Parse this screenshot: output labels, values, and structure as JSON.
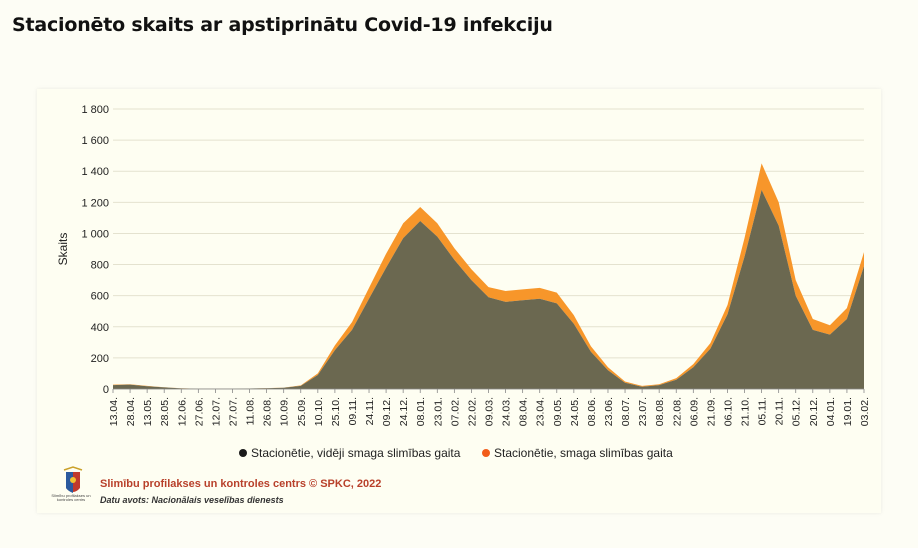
{
  "title": "Stacionēto skaits ar apstiprinātu Covid-19 infekciju",
  "footer": {
    "publisher": "Slimību profilakses un kontroles centrs © SPKC, 2022",
    "source": "Datu avots: Nacionālais veselības dienests",
    "logo_caption": "Slimību profilakses un kontroles centrs"
  },
  "colors": {
    "moderate": "#6b6850",
    "severe": "#f7962a",
    "background": "#fefef2"
  },
  "chart_data": {
    "type": "area",
    "stacked": true,
    "ylabel": "Skaits",
    "xlabel": "",
    "ylim": [
      0,
      1800
    ],
    "yticks": [
      "0",
      "200",
      "400",
      "600",
      "800",
      "1 000",
      "1 200",
      "1 400",
      "1 600",
      "1 800"
    ],
    "grid": "horizontal",
    "legend_position": "bottom",
    "x_tick_labels": [
      "13.04.",
      "28.04.",
      "13.05.",
      "28.05.",
      "12.06.",
      "27.06.",
      "12.07.",
      "27.07.",
      "11.08.",
      "26.08.",
      "10.09.",
      "25.09.",
      "10.10.",
      "25.10.",
      "09.11.",
      "24.11.",
      "09.12.",
      "24.12.",
      "08.01.",
      "23.01.",
      "07.02.",
      "22.02.",
      "09.03.",
      "24.03.",
      "08.04.",
      "23.04.",
      "09.05.",
      "24.05.",
      "08.06.",
      "23.06.",
      "08.07.",
      "23.07.",
      "08.08.",
      "22.08.",
      "06.09.",
      "21.09.",
      "06.10.",
      "21.10.",
      "05.11.",
      "20.11.",
      "05.12.",
      "20.12.",
      "04.01.",
      "19.01.",
      "03.02."
    ],
    "x": [
      "13.04.",
      "28.04.",
      "13.05.",
      "28.05.",
      "12.06.",
      "27.06.",
      "12.07.",
      "27.07.",
      "11.08.",
      "26.08.",
      "10.09.",
      "25.09.",
      "10.10.",
      "25.10.",
      "09.11.",
      "24.11.",
      "09.12.",
      "24.12.",
      "08.01.",
      "23.01.",
      "07.02.",
      "22.02.",
      "09.03.",
      "24.03.",
      "08.04.",
      "23.04.",
      "09.05.",
      "24.05.",
      "08.06.",
      "23.06.",
      "08.07.",
      "23.07.",
      "08.08.",
      "22.08.",
      "06.09.",
      "21.09.",
      "06.10.",
      "21.10.",
      "05.11.",
      "20.11.",
      "05.12.",
      "20.12.",
      "04.01.",
      "19.01.",
      "03.02."
    ],
    "series": [
      {
        "name": "Stacionētie, vidēji smaga slimības gaita",
        "color": "#6b6850",
        "values": [
          25,
          28,
          18,
          10,
          4,
          2,
          2,
          2,
          3,
          5,
          8,
          20,
          90,
          250,
          380,
          580,
          780,
          970,
          1080,
          980,
          830,
          700,
          590,
          560,
          570,
          580,
          550,
          420,
          240,
          120,
          40,
          15,
          25,
          60,
          140,
          260,
          480,
          850,
          1280,
          1050,
          600,
          380,
          350,
          450,
          790
        ]
      },
      {
        "name": "Stacionētie, smaga slimības gaita",
        "color": "#f7962a",
        "values": [
          3,
          3,
          2,
          1,
          1,
          0,
          0,
          0,
          0,
          1,
          1,
          3,
          10,
          30,
          50,
          70,
          90,
          95,
          90,
          85,
          75,
          70,
          65,
          70,
          70,
          70,
          70,
          55,
          35,
          20,
          8,
          5,
          5,
          10,
          20,
          35,
          60,
          120,
          170,
          150,
          100,
          70,
          60,
          70,
          90
        ]
      }
    ]
  }
}
